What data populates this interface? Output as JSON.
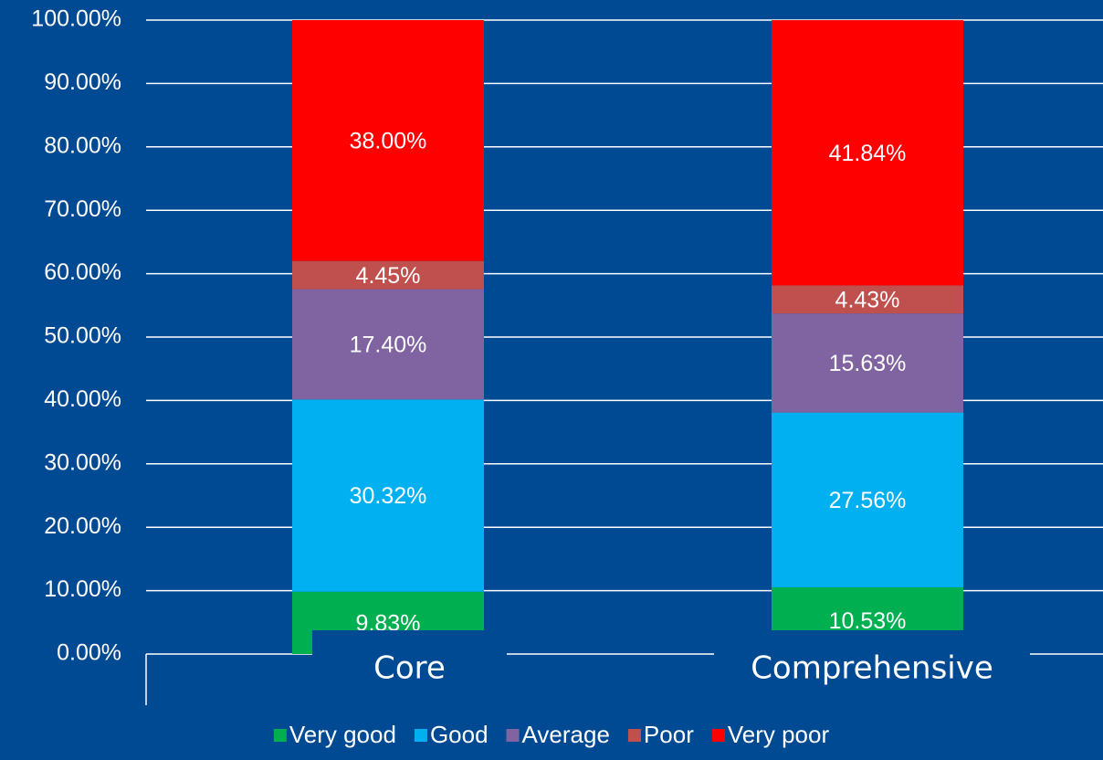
{
  "chart_data": {
    "type": "stacked_bar",
    "categories": [
      "Core",
      "Comprehensive"
    ],
    "series": [
      {
        "name": "Very good",
        "color": "#00b050",
        "values": [
          9.83,
          10.53
        ],
        "value_labels": [
          "9.83%",
          "10.53%"
        ]
      },
      {
        "name": "Good",
        "color": "#00b0f0",
        "values": [
          30.32,
          27.56
        ],
        "value_labels": [
          "30.32%",
          "27.56%"
        ]
      },
      {
        "name": "Average",
        "color": "#8064a2",
        "values": [
          17.4,
          15.63
        ],
        "value_labels": [
          "17.40%",
          "15.63%"
        ]
      },
      {
        "name": "Poor",
        "color": "#c0504d",
        "values": [
          4.45,
          4.43
        ],
        "value_labels": [
          "4.45%",
          "4.43%"
        ]
      },
      {
        "name": "Very poor",
        "color": "#ff0000",
        "values": [
          38.0,
          41.84
        ],
        "value_labels": [
          "38.00%",
          "41.84%"
        ]
      }
    ],
    "ylim": [
      0,
      100
    ],
    "yticks": [
      {
        "value": 0,
        "label": "0.00%"
      },
      {
        "value": 10,
        "label": "10.00%"
      },
      {
        "value": 20,
        "label": "20.00%"
      },
      {
        "value": 30,
        "label": "30.00%"
      },
      {
        "value": 40,
        "label": "40.00%"
      },
      {
        "value": 50,
        "label": "50.00%"
      },
      {
        "value": 60,
        "label": "60.00%"
      },
      {
        "value": 70,
        "label": "70.00%"
      },
      {
        "value": 80,
        "label": "80.00%"
      },
      {
        "value": 90,
        "label": "90.00%"
      },
      {
        "value": 100,
        "label": "100.00%"
      }
    ],
    "grid": true,
    "legend": "bottom"
  }
}
